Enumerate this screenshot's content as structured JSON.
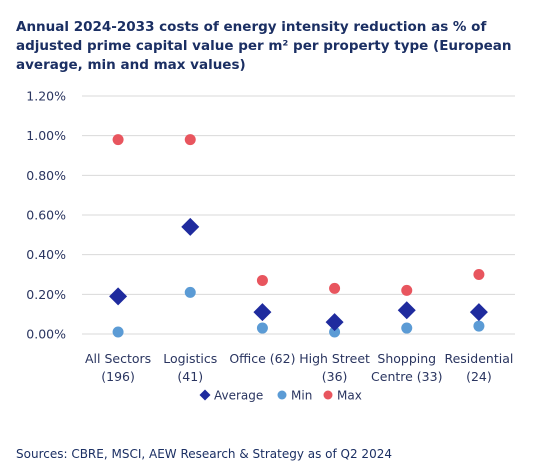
{
  "title": "Annual 2024-2033 costs of energy intensity reduction as % of adjusted prime capital value per m² per property type (European average, min and max values)",
  "source": "Sources: CBRE, MSCI, AEW Research & Strategy as of Q2 2024",
  "chart_data": {
    "type": "scatter",
    "categories": [
      [
        "All Sectors",
        "(196)"
      ],
      [
        "Logistics",
        "(41)"
      ],
      [
        "Office (62)",
        ""
      ],
      [
        "High Street",
        "(36)"
      ],
      [
        "Shopping",
        "Centre (33)"
      ],
      [
        "Residential",
        "(24)"
      ]
    ],
    "series": [
      {
        "name": "Average",
        "marker": "diamond",
        "color": "#1f2b9e",
        "values": [
          0.19,
          0.54,
          0.11,
          0.06,
          0.12,
          0.11
        ]
      },
      {
        "name": "Min",
        "marker": "circle",
        "color": "#5b9bd5",
        "values": [
          0.01,
          0.21,
          0.03,
          0.01,
          0.03,
          0.04
        ]
      },
      {
        "name": "Max",
        "marker": "circle",
        "color": "#e8555e",
        "values": [
          0.98,
          0.98,
          0.27,
          0.23,
          0.22,
          0.3
        ]
      }
    ],
    "yticks": [
      "0.00%",
      "0.20%",
      "0.40%",
      "0.60%",
      "0.80%",
      "1.00%",
      "1.20%"
    ],
    "ylim": [
      0,
      1.2
    ],
    "grid": true,
    "legend": "bottom"
  }
}
